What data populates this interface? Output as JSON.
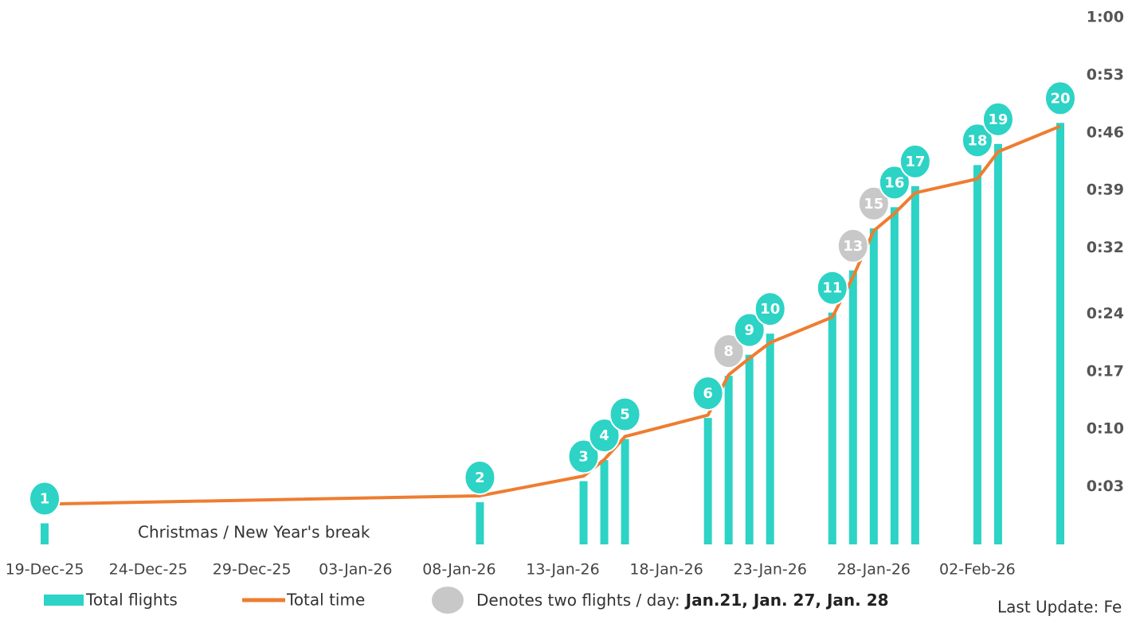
{
  "chart_data": {
    "type": "combo",
    "x": [
      "2025-12-19",
      "2026-01-09",
      "2026-01-14",
      "2026-01-15",
      "2026-01-16",
      "2026-01-20",
      "2026-01-21",
      "2026-01-22",
      "2026-01-23",
      "2026-01-26",
      "2026-01-27",
      "2026-01-28",
      "2026-01-29",
      "2026-01-30",
      "2026-02-02",
      "2026-02-03",
      "2026-02-06"
    ],
    "series": [
      {
        "name": "Total flights",
        "color": "#2dd3c5",
        "values": [
          1,
          2,
          3,
          4,
          5,
          6,
          8,
          9,
          10,
          11,
          13,
          15,
          16,
          17,
          18,
          19,
          20
        ],
        "label_colors": [
          "#2dd3c5",
          "#2dd3c5",
          "#2dd3c5",
          "#2dd3c5",
          "#2dd3c5",
          "#2dd3c5",
          "#c8c8c8",
          "#2dd3c5",
          "#2dd3c5",
          "#2dd3c5",
          "#c8c8c8",
          "#c8c8c8",
          "#2dd3c5",
          "#2dd3c5",
          "#2dd3c5",
          "#2dd3c5",
          "#2dd3c5"
        ]
      },
      {
        "name": "Total time",
        "color": "#ee7d31",
        "axis": "y2",
        "values": [
          0.9,
          1.9,
          4.3,
          6.3,
          9.1,
          11.7,
          16.6,
          18.6,
          20.5,
          23.6,
          28.5,
          34.1,
          36.2,
          38.7,
          40.4,
          43.7,
          46.8
        ]
      }
    ],
    "xlim": [
      "2025-12-19",
      "2026-02-06"
    ],
    "xticks": [
      {
        "value": "2025-12-19",
        "label": "19-Dec-25"
      },
      {
        "value": "2025-12-24",
        "label": "24-Dec-25"
      },
      {
        "value": "2025-12-29",
        "label": "29-Dec-25"
      },
      {
        "value": "2026-01-03",
        "label": "03-Jan-26"
      },
      {
        "value": "2026-01-08",
        "label": "08-Jan-26"
      },
      {
        "value": "2026-01-13",
        "label": "13-Jan-26"
      },
      {
        "value": "2026-01-18",
        "label": "18-Jan-26"
      },
      {
        "value": "2026-01-23",
        "label": "23-Jan-26"
      },
      {
        "value": "2026-01-28",
        "label": "28-Jan-26"
      },
      {
        "value": "2026-02-02",
        "label": "02-Feb-26"
      }
    ],
    "ylim": [
      0,
      25
    ],
    "y2lim": [
      -4,
      60
    ],
    "y2ticks": [
      {
        "value": 3,
        "label": "0:03"
      },
      {
        "value": 10,
        "label": "0:10"
      },
      {
        "value": 17,
        "label": "0:17"
      },
      {
        "value": 24,
        "label": "0:24"
      },
      {
        "value": 32,
        "label": "0:32"
      },
      {
        "value": 39,
        "label": "0:39"
      },
      {
        "value": 46,
        "label": "0:46"
      },
      {
        "value": 53,
        "label": "0:53"
      },
      {
        "value": 60,
        "label": "1:00"
      }
    ],
    "annotation": "Christmas / New Year's break",
    "legend_note": {
      "text": "Denotes two flights / day:",
      "bold": "Jan.21, Jan. 27, Jan. 28",
      "color": "#c8c8c8"
    },
    "footer": "Last Update: Fe"
  }
}
